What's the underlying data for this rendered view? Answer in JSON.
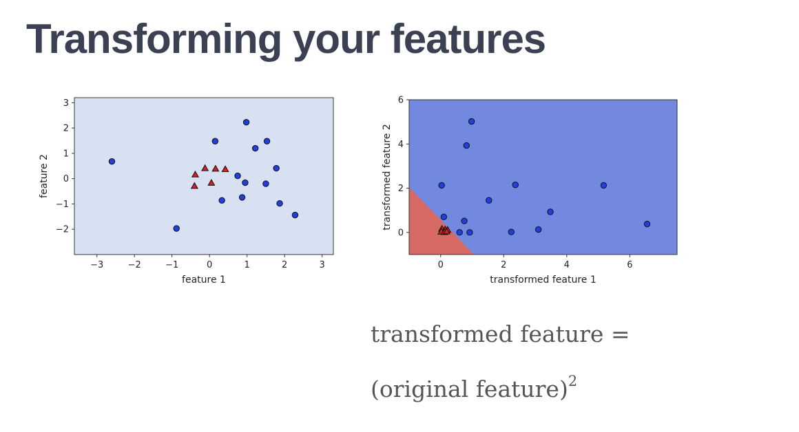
{
  "title": "Transforming your features",
  "formula": {
    "line1": "transformed feature =",
    "line2_pre": "(original feature)",
    "line2_exp": "2"
  },
  "colors": {
    "blue_point": "#1f3fe0",
    "red_point": "#d11f26",
    "left_background": "#d8e1f1",
    "right_blue_region": "#7389df",
    "right_red_region": "#d66a63"
  },
  "chart_data": [
    {
      "type": "scatter",
      "title": "",
      "xlabel": "feature 1",
      "ylabel": "feature 2",
      "xlim": [
        -3.6,
        3.3
      ],
      "ylim": [
        -3.0,
        3.2
      ],
      "xticks": [
        "−3",
        "−2",
        "−1",
        "0",
        "1",
        "2",
        "3"
      ],
      "xtick_values": [
        -3,
        -2,
        -1,
        0,
        1,
        2,
        3
      ],
      "yticks": [
        "3",
        "2",
        "1",
        "0",
        "−1",
        "−2"
      ],
      "ytick_values": [
        3,
        2,
        1,
        0,
        -1,
        -2
      ],
      "background": "single light-blue region",
      "series": [
        {
          "marker": "circle",
          "color": "blue",
          "points": [
            [
              -2.6,
              0.68
            ],
            [
              0.15,
              1.48
            ],
            [
              0.98,
              2.23
            ],
            [
              1.22,
              1.2
            ],
            [
              1.53,
              1.48
            ],
            [
              1.78,
              0.41
            ],
            [
              0.75,
              0.11
            ],
            [
              0.95,
              -0.16
            ],
            [
              1.5,
              -0.2
            ],
            [
              0.33,
              -0.86
            ],
            [
              0.87,
              -0.74
            ],
            [
              1.87,
              -0.98
            ],
            [
              2.28,
              -1.44
            ],
            [
              -0.88,
              -1.97
            ]
          ]
        },
        {
          "marker": "triangle",
          "color": "red",
          "points": [
            [
              -0.38,
              0.15
            ],
            [
              -0.12,
              0.4
            ],
            [
              0.16,
              0.38
            ],
            [
              0.42,
              0.36
            ],
            [
              -0.4,
              -0.3
            ],
            [
              0.05,
              -0.18
            ]
          ]
        }
      ]
    },
    {
      "type": "scatter",
      "title": "",
      "xlabel": "transformed feature 1",
      "ylabel": "transformed feature 2",
      "xlim": [
        -1.0,
        7.5
      ],
      "ylim": [
        -1.0,
        6.0
      ],
      "xticks": [
        "0",
        "2",
        "4",
        "6"
      ],
      "xtick_values": [
        0,
        2,
        4,
        6
      ],
      "yticks": [
        "6",
        "4",
        "2",
        "0"
      ],
      "ytick_values": [
        6,
        4,
        2,
        0
      ],
      "background": "decision regions: red region bottom-left below line from (-1, 2.05) to (1.05, -1); blue elsewhere",
      "decision_boundary": [
        [
          -1.0,
          2.05
        ],
        [
          1.05,
          -1.0
        ]
      ],
      "series": [
        {
          "marker": "circle",
          "color": "blue",
          "points": [
            [
              0.98,
              5.02
            ],
            [
              0.82,
              3.93
            ],
            [
              0.03,
              2.13
            ],
            [
              2.37,
              2.15
            ],
            [
              5.17,
              2.13
            ],
            [
              1.53,
              1.45
            ],
            [
              3.48,
              0.93
            ],
            [
              0.1,
              0.7
            ],
            [
              0.75,
              0.52
            ],
            [
              6.55,
              0.38
            ],
            [
              3.1,
              0.13
            ],
            [
              2.24,
              0.02
            ],
            [
              0.6,
              0.0
            ],
            [
              0.92,
              0.0
            ]
          ]
        },
        {
          "marker": "triangle",
          "color": "red",
          "points": [
            [
              0.04,
              0.15
            ],
            [
              0.14,
              0.12
            ],
            [
              0.22,
              0.1
            ],
            [
              0.02,
              0.02
            ],
            [
              0.12,
              0.0
            ],
            [
              0.19,
              0.03
            ]
          ]
        }
      ]
    }
  ]
}
